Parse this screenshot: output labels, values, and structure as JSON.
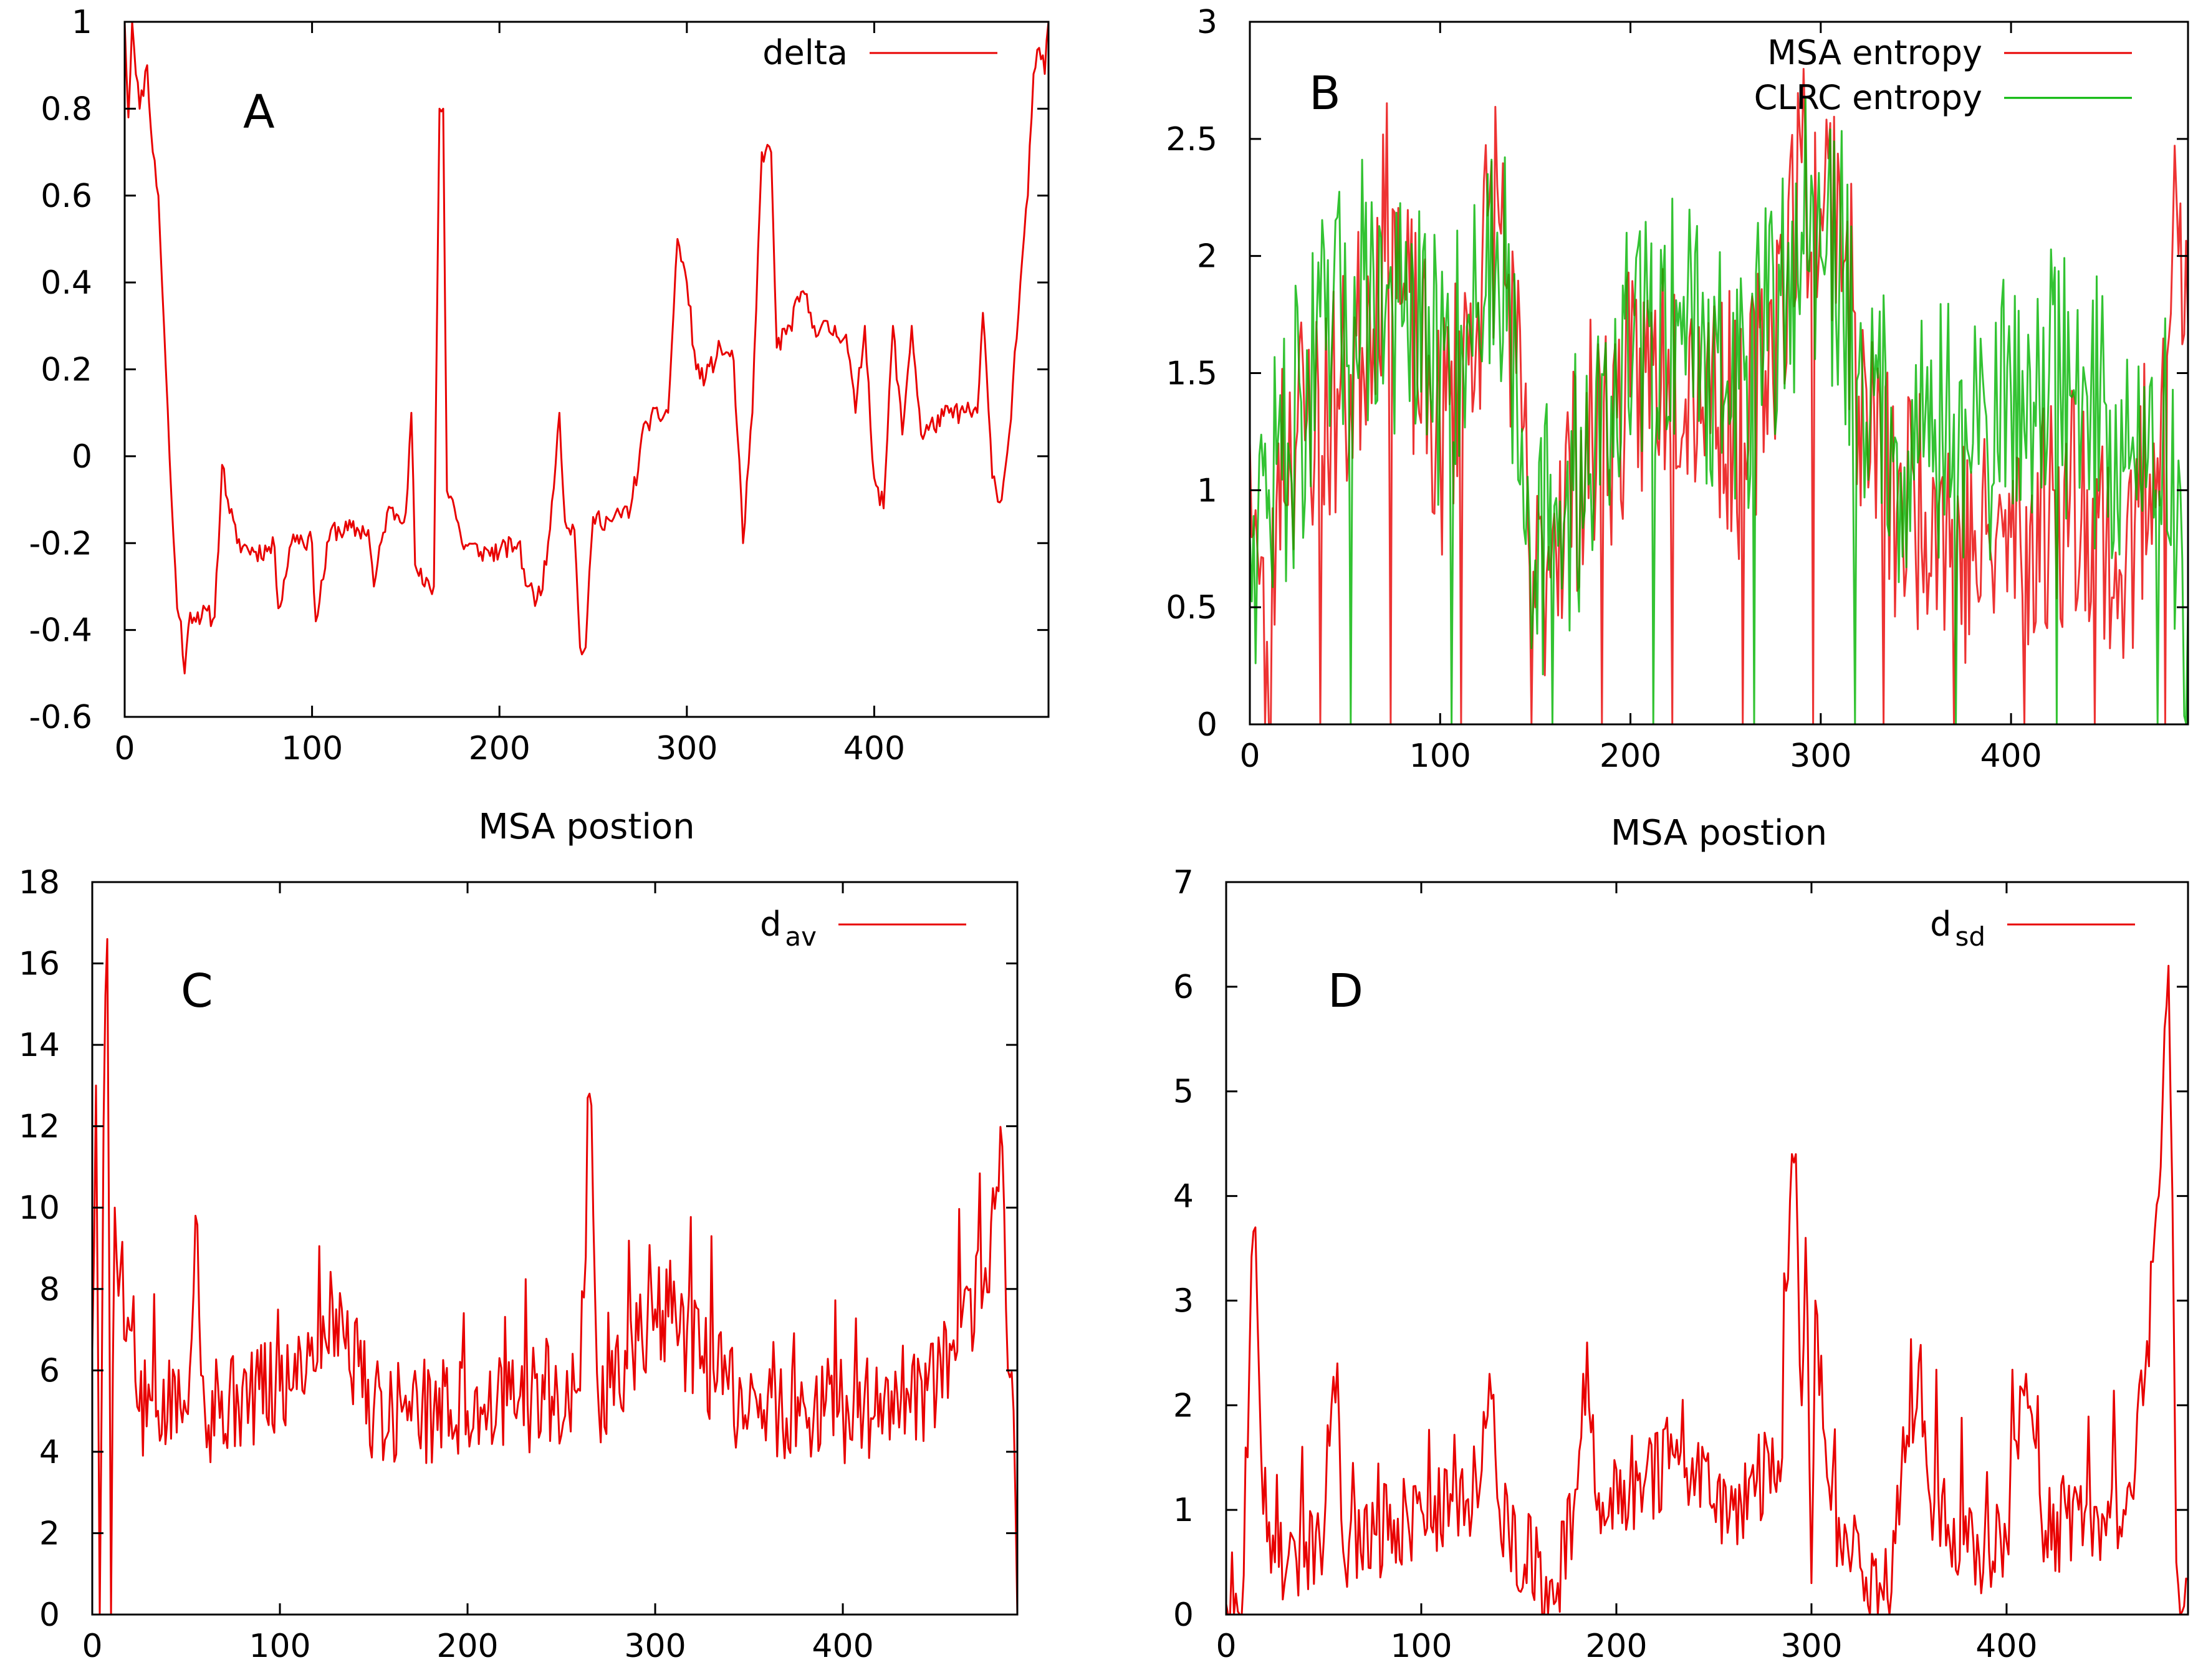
{
  "figure": {
    "panels": [
      {
        "id": "A",
        "label": "A"
      },
      {
        "id": "B",
        "label": "B"
      },
      {
        "id": "C",
        "label": "C"
      },
      {
        "id": "D",
        "label": "D"
      }
    ]
  },
  "chart_data": [
    {
      "panel": "A",
      "type": "line",
      "title": "",
      "xlabel": "MSA postion",
      "ylabel": "",
      "xlim": [
        0,
        493
      ],
      "ylim": [
        -0.6,
        1
      ],
      "xticks": [
        0,
        100,
        200,
        300,
        400
      ],
      "xtick_labels": [
        "0",
        "100",
        "200",
        "300",
        "400"
      ],
      "yticks": [
        -0.6,
        -0.4,
        -0.2,
        0,
        0.2,
        0.4,
        0.6,
        0.8,
        1
      ],
      "ytick_labels": [
        "-0.6",
        "-0.4",
        "-0.2",
        "0",
        "0.2",
        "0.4",
        "0.6",
        "0.8",
        "1"
      ],
      "legend": "top-right",
      "series": [
        {
          "name": "delta",
          "legend_text": "delta",
          "color": "#e80000",
          "seed": 11,
          "noise": 0.025,
          "anchors": [
            [
              0,
              1.0
            ],
            [
              2,
              0.78
            ],
            [
              4,
              1.0
            ],
            [
              8,
              0.8
            ],
            [
              12,
              0.9
            ],
            [
              15,
              0.7
            ],
            [
              18,
              0.6
            ],
            [
              22,
              0.2
            ],
            [
              25,
              -0.1
            ],
            [
              28,
              -0.35
            ],
            [
              30,
              -0.38
            ],
            [
              32,
              -0.5
            ],
            [
              35,
              -0.36
            ],
            [
              48,
              -0.37
            ],
            [
              52,
              -0.02
            ],
            [
              55,
              -0.1
            ],
            [
              60,
              -0.2
            ],
            [
              70,
              -0.22
            ],
            [
              80,
              -0.21
            ],
            [
              82,
              -0.35
            ],
            [
              90,
              -0.18
            ],
            [
              100,
              -0.2
            ],
            [
              102,
              -0.38
            ],
            [
              110,
              -0.17
            ],
            [
              130,
              -0.17
            ],
            [
              133,
              -0.3
            ],
            [
              140,
              -0.13
            ],
            [
              150,
              -0.13
            ],
            [
              153,
              0.1
            ],
            [
              155,
              -0.25
            ],
            [
              160,
              -0.3
            ],
            [
              165,
              -0.3
            ],
            [
              168,
              0.8
            ],
            [
              170,
              0.8
            ],
            [
              172,
              -0.08
            ],
            [
              175,
              -0.1
            ],
            [
              180,
              -0.2
            ],
            [
              190,
              -0.22
            ],
            [
              200,
              -0.22
            ],
            [
              210,
              -0.2
            ],
            [
              215,
              -0.3
            ],
            [
              220,
              -0.33
            ],
            [
              225,
              -0.25
            ],
            [
              232,
              0.1
            ],
            [
              235,
              -0.15
            ],
            [
              240,
              -0.17
            ],
            [
              243,
              -0.44
            ],
            [
              246,
              -0.44
            ],
            [
              250,
              -0.14
            ],
            [
              260,
              -0.15
            ],
            [
              270,
              -0.12
            ],
            [
              278,
              0.08
            ],
            [
              290,
              0.1
            ],
            [
              295,
              0.5
            ],
            [
              300,
              0.4
            ],
            [
              305,
              0.2
            ],
            [
              310,
              0.18
            ],
            [
              318,
              0.25
            ],
            [
              325,
              0.22
            ],
            [
              330,
              -0.2
            ],
            [
              335,
              0.1
            ],
            [
              340,
              0.7
            ],
            [
              345,
              0.7
            ],
            [
              348,
              0.25
            ],
            [
              355,
              0.3
            ],
            [
              362,
              0.38
            ],
            [
              368,
              0.3
            ],
            [
              385,
              0.28
            ],
            [
              390,
              0.1
            ],
            [
              395,
              0.3
            ],
            [
              400,
              -0.05
            ],
            [
              405,
              -0.12
            ],
            [
              410,
              0.3
            ],
            [
              415,
              0.05
            ],
            [
              420,
              0.3
            ],
            [
              425,
              0.05
            ],
            [
              440,
              0.1
            ],
            [
              455,
              0.1
            ],
            [
              458,
              0.33
            ],
            [
              463,
              -0.05
            ],
            [
              468,
              -0.1
            ],
            [
              472,
              0.05
            ],
            [
              478,
              0.4
            ],
            [
              482,
              0.6
            ],
            [
              485,
              0.88
            ],
            [
              488,
              0.94
            ],
            [
              491,
              0.88
            ],
            [
              493,
              1.0
            ]
          ]
        }
      ]
    },
    {
      "panel": "B",
      "type": "line",
      "title": "",
      "xlabel": "MSA postion",
      "ylabel": "",
      "xlim": [
        0,
        493
      ],
      "ylim": [
        0,
        3
      ],
      "xticks": [
        0,
        100,
        200,
        300,
        400
      ],
      "xtick_labels": [
        "0",
        "100",
        "200",
        "300",
        "400"
      ],
      "yticks": [
        0,
        0.5,
        1,
        1.5,
        2,
        2.5,
        3
      ],
      "ytick_labels": [
        "0",
        "0.5",
        "1",
        "1.5",
        "2",
        "2.5",
        "3"
      ],
      "legend": "top-right",
      "series": [
        {
          "name": "MSA entropy",
          "legend_text": "MSA entropy",
          "color": "#e80000",
          "seed": 23,
          "noise": 0.55,
          "zero_every": 37,
          "anchors": [
            [
              0,
              1.2
            ],
            [
              5,
              0.6
            ],
            [
              10,
              0.0
            ],
            [
              15,
              1.2
            ],
            [
              30,
              1.3
            ],
            [
              50,
              1.4
            ],
            [
              75,
              2.2
            ],
            [
              80,
              1.8
            ],
            [
              100,
              1.2
            ],
            [
              120,
              1.8
            ],
            [
              130,
              2.3
            ],
            [
              140,
              1.5
            ],
            [
              150,
              0.5
            ],
            [
              160,
              0.9
            ],
            [
              180,
              1.2
            ],
            [
              200,
              1.4
            ],
            [
              220,
              1.6
            ],
            [
              240,
              1.5
            ],
            [
              260,
              1.2
            ],
            [
              280,
              1.9
            ],
            [
              290,
              2.4
            ],
            [
              300,
              2.2
            ],
            [
              310,
              2.3
            ],
            [
              320,
              1.4
            ],
            [
              340,
              0.9
            ],
            [
              360,
              1.0
            ],
            [
              380,
              0.7
            ],
            [
              400,
              0.8
            ],
            [
              420,
              0.9
            ],
            [
              440,
              1.0
            ],
            [
              460,
              0.6
            ],
            [
              475,
              1.2
            ],
            [
              485,
              2.1
            ],
            [
              493,
              1.7
            ]
          ]
        },
        {
          "name": "CLRC entropy",
          "legend_text": "CLRC entropy",
          "color": "#00b400",
          "seed": 47,
          "noise": 0.6,
          "zero_every": 53,
          "anchors": [
            [
              0,
              0.8
            ],
            [
              10,
              1.0
            ],
            [
              20,
              1.2
            ],
            [
              40,
              1.6
            ],
            [
              60,
              1.9
            ],
            [
              80,
              1.7
            ],
            [
              100,
              1.5
            ],
            [
              120,
              1.8
            ],
            [
              130,
              2.1
            ],
            [
              140,
              1.6
            ],
            [
              150,
              0.7
            ],
            [
              170,
              1.0
            ],
            [
              190,
              1.4
            ],
            [
              210,
              1.7
            ],
            [
              230,
              1.8
            ],
            [
              250,
              1.4
            ],
            [
              270,
              1.6
            ],
            [
              290,
              2.1
            ],
            [
              300,
              2.0
            ],
            [
              310,
              2.0
            ],
            [
              320,
              1.5
            ],
            [
              340,
              1.2
            ],
            [
              360,
              1.3
            ],
            [
              380,
              1.2
            ],
            [
              400,
              1.4
            ],
            [
              420,
              1.5
            ],
            [
              440,
              1.4
            ],
            [
              460,
              1.1
            ],
            [
              480,
              1.3
            ],
            [
              493,
              0.5
            ]
          ]
        }
      ]
    },
    {
      "panel": "C",
      "type": "line",
      "title": "",
      "xlabel": "",
      "ylabel": "",
      "xlim": [
        0,
        493
      ],
      "ylim": [
        0,
        18
      ],
      "xticks": [
        0,
        100,
        200,
        300,
        400
      ],
      "xtick_labels": [
        "0",
        "100",
        "200",
        "300",
        "400"
      ],
      "yticks": [
        0,
        2,
        4,
        6,
        8,
        10,
        12,
        14,
        16,
        18
      ],
      "ytick_labels": [
        "0",
        "2",
        "4",
        "6",
        "8",
        "10",
        "12",
        "14",
        "16",
        "18"
      ],
      "legend": "top-right",
      "series": [
        {
          "name": "d_av",
          "legend_text": "d",
          "legend_sub": "av",
          "color": "#e80000",
          "seed": 5,
          "noise": 1.3,
          "spike_every": 11,
          "spike_add": 3.0,
          "anchors": [
            [
              0,
              6.5
            ],
            [
              2,
              13.0
            ],
            [
              4,
              0.0
            ],
            [
              6,
              12.0
            ],
            [
              8,
              16.6
            ],
            [
              10,
              0.0
            ],
            [
              12,
              10.0
            ],
            [
              15,
              8.5
            ],
            [
              20,
              7.0
            ],
            [
              25,
              5.0
            ],
            [
              50,
              5.0
            ],
            [
              55,
              9.8
            ],
            [
              60,
              5.0
            ],
            [
              100,
              5.5
            ],
            [
              130,
              7.5
            ],
            [
              150,
              5.0
            ],
            [
              200,
              5.0
            ],
            [
              260,
              5.5
            ],
            [
              265,
              12.8
            ],
            [
              270,
              5.0
            ],
            [
              300,
              7.5
            ],
            [
              350,
              5.0
            ],
            [
              400,
              5.0
            ],
            [
              450,
              5.5
            ],
            [
              475,
              8.0
            ],
            [
              482,
              10.5
            ],
            [
              485,
              11.5
            ],
            [
              488,
              6.0
            ],
            [
              491,
              5.0
            ],
            [
              493,
              0.0
            ]
          ]
        }
      ]
    },
    {
      "panel": "D",
      "type": "line",
      "title": "",
      "xlabel": "",
      "ylabel": "",
      "xlim": [
        0,
        493
      ],
      "ylim": [
        0,
        7
      ],
      "xticks": [
        0,
        100,
        200,
        300,
        400
      ],
      "xtick_labels": [
        "0",
        "100",
        "200",
        "300",
        "400"
      ],
      "yticks": [
        0,
        1,
        2,
        3,
        4,
        5,
        6,
        7
      ],
      "ytick_labels": [
        "0",
        "1",
        "2",
        "3",
        "4",
        "5",
        "6",
        "7"
      ],
      "legend": "top-right",
      "series": [
        {
          "name": "d_sd",
          "legend_text": "d",
          "legend_sub": "sd",
          "color": "#e80000",
          "seed": 9,
          "noise": 0.45,
          "spike_every": 13,
          "spike_add": 1.0,
          "anchors": [
            [
              0,
              0.1
            ],
            [
              5,
              0.2
            ],
            [
              8,
              0.0
            ],
            [
              12,
              2.5
            ],
            [
              15,
              3.7
            ],
            [
              18,
              1.5
            ],
            [
              25,
              0.5
            ],
            [
              50,
              0.7
            ],
            [
              57,
              2.4
            ],
            [
              60,
              0.6
            ],
            [
              100,
              1.0
            ],
            [
              130,
              1.2
            ],
            [
              135,
              2.3
            ],
            [
              140,
              1.0
            ],
            [
              168,
              0.1
            ],
            [
              170,
              0.3
            ],
            [
              180,
              1.2
            ],
            [
              185,
              2.6
            ],
            [
              190,
              1.0
            ],
            [
              230,
              1.5
            ],
            [
              260,
              1.0
            ],
            [
              285,
              1.5
            ],
            [
              290,
              4.4
            ],
            [
              292,
              4.4
            ],
            [
              295,
              2.0
            ],
            [
              297,
              3.6
            ],
            [
              300,
              0.3
            ],
            [
              302,
              3.0
            ],
            [
              310,
              1.0
            ],
            [
              340,
              0.0
            ],
            [
              342,
              0.8
            ],
            [
              355,
              2.4
            ],
            [
              360,
              1.2
            ],
            [
              380,
              0.6
            ],
            [
              400,
              0.7
            ],
            [
              410,
              2.3
            ],
            [
              420,
              0.8
            ],
            [
              460,
              1.0
            ],
            [
              470,
              2.0
            ],
            [
              478,
              4.0
            ],
            [
              481,
              5.6
            ],
            [
              483,
              6.2
            ],
            [
              485,
              4.0
            ],
            [
              487,
              0.5
            ],
            [
              489,
              0.0
            ]
          ]
        }
      ]
    }
  ]
}
